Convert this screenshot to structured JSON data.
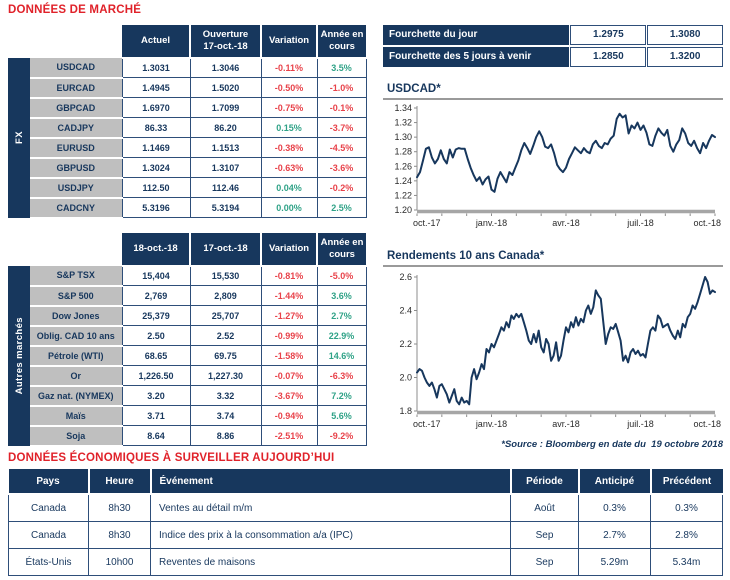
{
  "colors": {
    "navy": "#17375D",
    "title_red": "#E0222A",
    "negative_red": "#E8424A",
    "positive_green": "#2FA287",
    "label_gray": "#BFBFBF",
    "axis_gray": "#A6A6A6"
  },
  "market_section": {
    "title": "DONNÉES DE MARCHÉ",
    "fx_table": {
      "group_label": "FX",
      "headers": [
        "Actuel",
        "Ouverture\n17-oct.-18",
        "Variation",
        "Année en\ncours"
      ],
      "rows": [
        {
          "label": "USDCAD",
          "values": [
            "1.3031",
            "1.3046",
            "-0.11%",
            "3.5%"
          ]
        },
        {
          "label": "EURCAD",
          "values": [
            "1.4945",
            "1.5020",
            "-0.50%",
            "-1.0%"
          ]
        },
        {
          "label": "GBPCAD",
          "values": [
            "1.6970",
            "1.7099",
            "-0.75%",
            "-0.1%"
          ]
        },
        {
          "label": "CADJPY",
          "values": [
            "86.33",
            "86.20",
            "0.15%",
            "-3.7%"
          ]
        },
        {
          "label": "EURUSD",
          "values": [
            "1.1469",
            "1.1513",
            "-0.38%",
            "-4.5%"
          ]
        },
        {
          "label": "GBPUSD",
          "values": [
            "1.3024",
            "1.3107",
            "-0.63%",
            "-3.6%"
          ]
        },
        {
          "label": "USDJPY",
          "values": [
            "112.50",
            "112.46",
            "0.04%",
            "-0.2%"
          ]
        },
        {
          "label": "CADCNY",
          "values": [
            "5.3196",
            "5.3194",
            "0.00%",
            "2.5%"
          ]
        }
      ]
    },
    "markets_table": {
      "group_label": "Autres marchés",
      "headers": [
        "18-oct.-18",
        "17-oct.-18",
        "Variation",
        "Année en\ncours"
      ],
      "rows": [
        {
          "label": "S&P TSX",
          "values": [
            "15,404",
            "15,530",
            "-0.81%",
            "-5.0%"
          ]
        },
        {
          "label": "S&P 500",
          "values": [
            "2,769",
            "2,809",
            "-1.44%",
            "3.6%"
          ]
        },
        {
          "label": "Dow Jones",
          "values": [
            "25,379",
            "25,707",
            "-1.27%",
            "2.7%"
          ]
        },
        {
          "label": "Oblig. CAD 10 ans",
          "values": [
            "2.50",
            "2.52",
            "-0.99%",
            "22.9%"
          ]
        },
        {
          "label": "Pétrole (WTI)",
          "values": [
            "68.65",
            "69.75",
            "-1.58%",
            "14.6%"
          ]
        },
        {
          "label": "Or",
          "values": [
            "1,226.50",
            "1,227.30",
            "-0.07%",
            "-6.3%"
          ]
        },
        {
          "label": "Gaz nat. (NYMEX)",
          "values": [
            "3.20",
            "3.32",
            "-3.67%",
            "7.2%"
          ]
        },
        {
          "label": "Maïs",
          "values": [
            "3.71",
            "3.74",
            "-0.94%",
            "5.6%"
          ]
        },
        {
          "label": "Soja",
          "values": [
            "8.64",
            "8.86",
            "-2.51%",
            "-9.2%"
          ]
        }
      ]
    }
  },
  "range_table": {
    "rows": [
      {
        "label": "Fourchette du jour",
        "low": "1.2975",
        "high": "1.3080"
      },
      {
        "label": "Fourchette des 5 jours à venir",
        "low": "1.2850",
        "high": "1.3200"
      }
    ]
  },
  "source_note": "*Source : Bloomberg en date du  19 octobre 2018",
  "econ_section": {
    "title": "DONNÉES ÉCONOMIQUES À SURVEILLER AUJOURD’HUI",
    "headers": [
      "Pays",
      "Heure",
      "Événement",
      "Période",
      "Anticipé",
      "Précédent"
    ],
    "rows": [
      [
        "Canada",
        "8h30",
        "Ventes au détail m/m",
        "Août",
        "0.3%",
        "0.3%"
      ],
      [
        "Canada",
        "8h30",
        "Indice des prix à la consommation a/a (IPC)",
        "Sep",
        "2.7%",
        "2.8%"
      ],
      [
        "États-Unis",
        "10h00",
        "Reventes de maisons",
        "Sep",
        "5.29m",
        "5.34m"
      ]
    ]
  },
  "chart_data": [
    {
      "type": "line",
      "title": "USDCAD*",
      "xlabel": "",
      "ylabel": "",
      "ylim": [
        1.2,
        1.34
      ],
      "yticks": [
        "1.20",
        "1.22",
        "1.24",
        "1.26",
        "1.28",
        "1.30",
        "1.32",
        "1.34"
      ],
      "xticklabels": [
        "oct.-17",
        "janv.-18",
        "avr.-18",
        "juil.-18",
        "oct.-18"
      ],
      "grid": false,
      "legend": false,
      "values": [
        1.245,
        1.252,
        1.268,
        1.284,
        1.286,
        1.272,
        1.264,
        1.27,
        1.282,
        1.27,
        1.264,
        1.283,
        1.272,
        1.283,
        1.285,
        1.284,
        1.284,
        1.27,
        1.258,
        1.248,
        1.24,
        1.245,
        1.235,
        1.242,
        1.246,
        1.228,
        1.225,
        1.243,
        1.252,
        1.245,
        1.238,
        1.252,
        1.248,
        1.258,
        1.268,
        1.282,
        1.292,
        1.285,
        1.277,
        1.288,
        1.3,
        1.308,
        1.3,
        1.287,
        1.285,
        1.29,
        1.278,
        1.262,
        1.256,
        1.252,
        1.258,
        1.27,
        1.278,
        1.286,
        1.282,
        1.278,
        1.285,
        1.28,
        1.278,
        1.29,
        1.295,
        1.288,
        1.285,
        1.292,
        1.29,
        1.298,
        1.302,
        1.325,
        1.332,
        1.327,
        1.33,
        1.305,
        1.316,
        1.312,
        1.32,
        1.31,
        1.316,
        1.306,
        1.29,
        1.288,
        1.302,
        1.312,
        1.306,
        1.302,
        1.31,
        1.288,
        1.28,
        1.29,
        1.296,
        1.312,
        1.305,
        1.292,
        1.288,
        1.295,
        1.285,
        1.278,
        1.292,
        1.285,
        1.295,
        1.303,
        1.3
      ]
    },
    {
      "type": "line",
      "title": "Rendements 10 ans Canada*",
      "xlabel": "",
      "ylabel": "",
      "ylim": [
        1.8,
        2.6
      ],
      "yticks": [
        "1.8",
        "2.0",
        "2.2",
        "2.4",
        "2.6"
      ],
      "xticklabels": [
        "oct.-17",
        "janv.-18",
        "avr.-18",
        "juil.-18",
        "oct.-18"
      ],
      "grid": false,
      "legend": false,
      "values": [
        2.03,
        2.05,
        2.04,
        2.0,
        1.97,
        1.95,
        1.97,
        1.93,
        1.88,
        1.95,
        1.96,
        1.93,
        1.9,
        1.85,
        1.89,
        1.93,
        1.86,
        1.84,
        1.88,
        1.85,
        1.86,
        1.84,
        2.0,
        2.05,
        1.99,
        2.03,
        2.08,
        2.05,
        2.17,
        2.15,
        2.2,
        2.18,
        2.22,
        2.26,
        2.3,
        2.28,
        2.33,
        2.3,
        2.37,
        2.35,
        2.38,
        2.36,
        2.38,
        2.33,
        2.28,
        2.22,
        2.2,
        2.26,
        2.21,
        2.28,
        2.18,
        2.15,
        2.23,
        2.2,
        2.1,
        2.13,
        2.21,
        2.1,
        2.13,
        2.22,
        2.3,
        2.27,
        2.33,
        2.3,
        2.36,
        2.31,
        2.35,
        2.33,
        2.4,
        2.43,
        2.38,
        2.42,
        2.52,
        2.49,
        2.47,
        2.33,
        2.2,
        2.26,
        2.3,
        2.29,
        2.32,
        2.27,
        2.22,
        2.1,
        2.13,
        2.09,
        2.15,
        2.17,
        2.14,
        2.16,
        2.13,
        2.14,
        2.12,
        2.2,
        2.28,
        2.3,
        2.28,
        2.37,
        2.35,
        2.3,
        2.31,
        2.32,
        2.28,
        2.25,
        2.23,
        2.28,
        2.24,
        2.32,
        2.3,
        2.36,
        2.38,
        2.43,
        2.41,
        2.45,
        2.5,
        2.55,
        2.6,
        2.57,
        2.5,
        2.52,
        2.51
      ]
    }
  ]
}
